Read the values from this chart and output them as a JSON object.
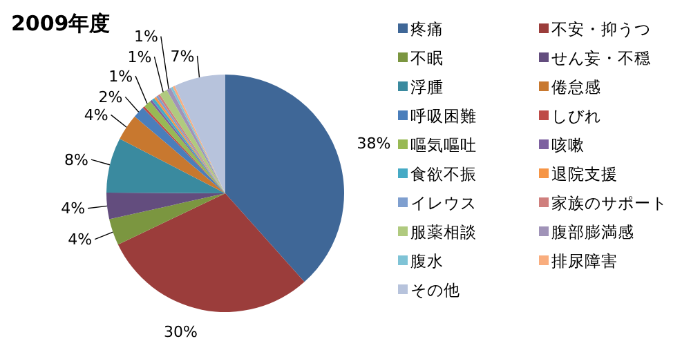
{
  "chart_data": {
    "type": "pie",
    "title": "2009年度",
    "categories": [
      "疼痛",
      "不安・抑うつ",
      "不眠",
      "せん妄・不穏",
      "浮腫",
      "倦怠感",
      "呼吸困難",
      "しびれ",
      "嘔気嘔吐",
      "咳嗽",
      "食欲不振",
      "退院支援",
      "イレウス",
      "家族のサポート",
      "服薬相談",
      "腹部膨満感",
      "腹水",
      "排尿障害",
      "その他"
    ],
    "values": [
      38.4,
      29.5,
      3.6,
      3.6,
      7.5,
      3.6,
      1.6,
      0.3,
      1.0,
      0.3,
      0.4,
      0.3,
      0.3,
      0.3,
      1.1,
      0.6,
      0.3,
      0.3,
      7.0
    ],
    "value_labels": [
      "38%",
      "30%",
      "4%",
      "4%",
      "8%",
      "4%",
      "2%",
      null,
      "1%",
      null,
      null,
      null,
      null,
      null,
      "1%",
      "1%",
      null,
      null,
      "7%"
    ],
    "colors": [
      "#3f6797",
      "#9b3d3b",
      "#7b9640",
      "#634d7e",
      "#3a8a9f",
      "#c8782f",
      "#4a7ebb",
      "#be4b48",
      "#98b954",
      "#7d60a0",
      "#46aac5",
      "#f69546",
      "#7f9fcf",
      "#cf7f7d",
      "#b0ca7f",
      "#a093b8",
      "#7fc3d6",
      "#f9ad7e",
      "#b7c3dc"
    ],
    "legend": "right"
  }
}
